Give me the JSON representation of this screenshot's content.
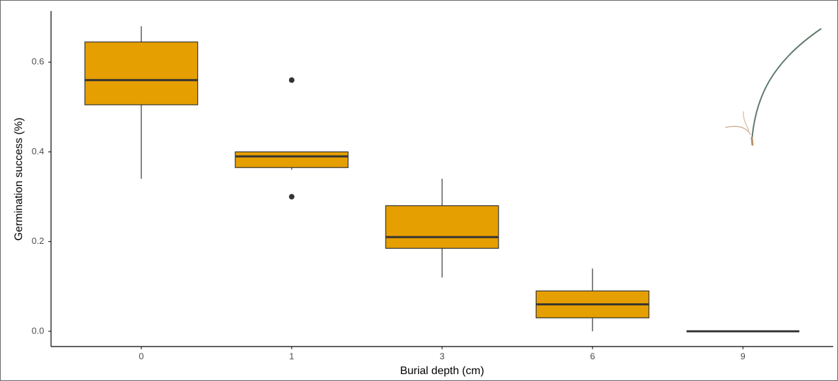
{
  "chart_data": {
    "type": "box",
    "x_label": "Burial depth (cm)",
    "y_label": "Germination success (%)",
    "categories": [
      "0",
      "1",
      "3",
      "6",
      "9"
    ],
    "color": "#E69F00",
    "boxes": [
      {
        "min": 0.34,
        "q1": 0.505,
        "median": 0.56,
        "q3": 0.645,
        "max": 0.68,
        "outliers": []
      },
      {
        "min": 0.36,
        "q1": 0.365,
        "median": 0.39,
        "q3": 0.4,
        "max": 0.4,
        "outliers": [
          0.56,
          0.3
        ]
      },
      {
        "min": 0.12,
        "q1": 0.185,
        "median": 0.21,
        "q3": 0.28,
        "max": 0.34,
        "outliers": []
      },
      {
        "min": 0.0,
        "q1": 0.03,
        "median": 0.06,
        "q3": 0.09,
        "max": 0.14,
        "outliers": []
      },
      {
        "min": 0.0,
        "q1": 0.0,
        "median": 0.0,
        "q3": 0.0,
        "max": 0.0,
        "outliers": []
      }
    ],
    "ylim": [
      -0.034,
      0.714
    ],
    "yticks": [
      {
        "value": 0,
        "label": "0.0"
      },
      0.2,
      0.4,
      0.6
    ]
  }
}
